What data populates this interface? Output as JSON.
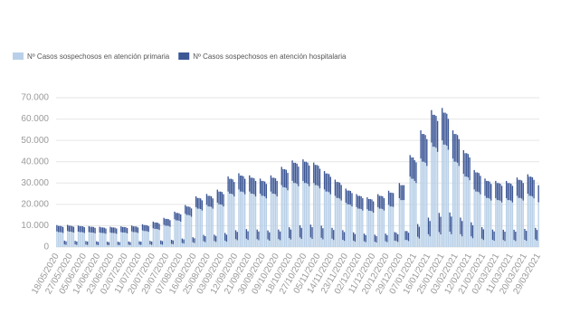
{
  "chart_data": {
    "type": "bar",
    "stacked": true,
    "grid": true,
    "categories": [
      "18/05/2020",
      null,
      null,
      null,
      null,
      null,
      null,
      null,
      null,
      "27/05/2020",
      null,
      null,
      null,
      null,
      null,
      null,
      null,
      null,
      "05/06/2020",
      null,
      null,
      null,
      null,
      null,
      null,
      null,
      null,
      "14/06/2020",
      null,
      null,
      null,
      null,
      null,
      null,
      null,
      null,
      "23/06/2020",
      null,
      null,
      null,
      null,
      null,
      null,
      null,
      null,
      "02/07/2020",
      null,
      null,
      null,
      null,
      null,
      null,
      null,
      null,
      "11/07/2020",
      null,
      null,
      null,
      null,
      null,
      null,
      null,
      null,
      "20/07/2020",
      null,
      null,
      null,
      null,
      null,
      null,
      null,
      null,
      "29/07/2020",
      null,
      null,
      null,
      null,
      null,
      null,
      null,
      null,
      "07/08/2020",
      null,
      null,
      null,
      null,
      null,
      null,
      null,
      null,
      "16/08/2020",
      null,
      null,
      null,
      null,
      null,
      null,
      null,
      null,
      "25/08/2020",
      null,
      null,
      null,
      null,
      null,
      null,
      null,
      null,
      "03/09/2020",
      null,
      null,
      null,
      null,
      null,
      null,
      null,
      null,
      "12/09/2020",
      null,
      null,
      null,
      null,
      null,
      null,
      null,
      null,
      "21/09/2020",
      null,
      null,
      null,
      null,
      null,
      null,
      null,
      null,
      "30/09/2020",
      null,
      null,
      null,
      null,
      null,
      null,
      null,
      null,
      "09/10/2020",
      null,
      null,
      null,
      null,
      null,
      null,
      null,
      null,
      "18/10/2020",
      null,
      null,
      null,
      null,
      null,
      null,
      null,
      null,
      "27/10/2020",
      null,
      null,
      null,
      null,
      null,
      null,
      null,
      null,
      "05/11/2020",
      null,
      null,
      null,
      null,
      null,
      null,
      null,
      null,
      "14/11/2020",
      null,
      null,
      null,
      null,
      null,
      null,
      null,
      null,
      "23/11/2020",
      null,
      null,
      null,
      null,
      null,
      null,
      null,
      null,
      "02/12/2020",
      null,
      null,
      null,
      null,
      null,
      null,
      null,
      null,
      "11/12/2020",
      null,
      null,
      null,
      null,
      null,
      null,
      null,
      null,
      "20/12/2020",
      null,
      null,
      null,
      null,
      null,
      null,
      null,
      null,
      "29/12/2020",
      null,
      null,
      null,
      null,
      null,
      null,
      null,
      null,
      "07/01/2021",
      null,
      null,
      null,
      null,
      null,
      null,
      null,
      null,
      "16/01/2021",
      null,
      null,
      null,
      null,
      null,
      null,
      null,
      null,
      "25/01/2021",
      null,
      null,
      null,
      null,
      null,
      null,
      null,
      null,
      "03/02/2021",
      null,
      null,
      null,
      null,
      null,
      null,
      null,
      null,
      "12/02/2021",
      null,
      null,
      null,
      null,
      null,
      null,
      null,
      null,
      "21/02/2021",
      null,
      null,
      null,
      null,
      null,
      null,
      null,
      null,
      "02/03/2021",
      null,
      null,
      null,
      null,
      null,
      null,
      null,
      null,
      "11/03/2021",
      null,
      null,
      null,
      null,
      null,
      null,
      null,
      null,
      "20/03/2021",
      null,
      null,
      null,
      null,
      null,
      null,
      null,
      null,
      "29/03/2021"
    ],
    "series": [
      {
        "name": "Nº Casos sospechosos en atención primaria",
        "color": "#b9d0e8",
        "values": [
          7300,
          7000,
          7000,
          6900,
          6600,
          1200,
          1000,
          7500,
          7200,
          7200,
          7000,
          6800,
          1200,
          1000,
          7200,
          7000,
          7000,
          6900,
          6600,
          1100,
          1000,
          7000,
          6800,
          6800,
          6700,
          6400,
          1100,
          900,
          6800,
          6600,
          6600,
          6500,
          6200,
          1000,
          900,
          6800,
          6600,
          6600,
          6500,
          6200,
          1000,
          900,
          7000,
          6800,
          6800,
          6700,
          6400,
          1100,
          900,
          7300,
          7000,
          7000,
          6900,
          6600,
          1100,
          1000,
          7800,
          7500,
          7500,
          7400,
          7100,
          1200,
          1000,
          8800,
          8500,
          8500,
          8400,
          8000,
          1300,
          1100,
          10400,
          10000,
          10000,
          9900,
          9500,
          1500,
          1300,
          13000,
          12500,
          12500,
          12300,
          11900,
          1900,
          1600,
          15600,
          15000,
          15000,
          14800,
          14200,
          2200,
          1900,
          18700,
          18000,
          18000,
          17800,
          17100,
          2700,
          2300,
          19800,
          19000,
          19000,
          18800,
          18000,
          2800,
          2400,
          20800,
          20000,
          20000,
          19800,
          19000,
          3000,
          2500,
          26000,
          25000,
          25000,
          24700,
          23700,
          3700,
          3200,
          27000,
          26000,
          26000,
          25700,
          24700,
          3900,
          3300,
          26000,
          25000,
          25000,
          24700,
          23700,
          3700,
          3200,
          25000,
          24000,
          24000,
          23700,
          22800,
          3600,
          3000,
          26000,
          25000,
          25000,
          24700,
          23700,
          3700,
          3200,
          29000,
          28000,
          28000,
          27700,
          26600,
          4200,
          3500,
          31000,
          30000,
          30000,
          29600,
          28500,
          4500,
          3800,
          31000,
          30000,
          30000,
          29600,
          28500,
          4500,
          3800,
          30000,
          29000,
          29000,
          28600,
          27500,
          4300,
          3600,
          27000,
          26000,
          26000,
          25700,
          24700,
          3900,
          3300,
          24000,
          23000,
          23000,
          22700,
          21800,
          3400,
          2900,
          20800,
          20000,
          20000,
          19800,
          19000,
          3000,
          2500,
          18700,
          18000,
          18000,
          17800,
          17100,
          2700,
          2300,
          17700,
          17000,
          17000,
          16800,
          16100,
          2500,
          2100,
          18700,
          18000,
          18000,
          17800,
          17100,
          2700,
          2300,
          19800,
          19000,
          19000,
          18800,
          3000,
          2800,
          2400,
          22900,
          22000,
          22000,
          22000,
          3300,
          3300,
          2800,
          33000,
          32000,
          32000,
          31000,
          30000,
          4800,
          4000,
          41500,
          40000,
          40000,
          39500,
          38000,
          6000,
          5000,
          49000,
          47000,
          47000,
          46500,
          44600,
          7000,
          5900,
          50000,
          48000,
          48000,
          47500,
          45600,
          7200,
          6000,
          41500,
          40000,
          40000,
          39500,
          38000,
          6000,
          5000,
          34300,
          33000,
          33000,
          32600,
          31300,
          5000,
          4100,
          27000,
          26000,
          26000,
          25700,
          24700,
          3900,
          3300,
          24000,
          23000,
          23000,
          22700,
          21800,
          3400,
          2900,
          22900,
          22000,
          22000,
          21700,
          20900,
          3300,
          2800,
          22900,
          22000,
          22000,
          21700,
          20900,
          3300,
          2800,
          24000,
          23000,
          23000,
          22700,
          21800,
          3400,
          2900,
          25000,
          24000,
          24000,
          23700,
          22800,
          3600,
          3000,
          21000
        ]
      },
      {
        "name": "Nº Casos sospechosos en atención hospitalaria",
        "color": "#3c5796",
        "values": [
          3000,
          2900,
          2900,
          2900,
          2800,
          1800,
          1700,
          2900,
          2800,
          2800,
          2800,
          2700,
          1700,
          1600,
          2900,
          2800,
          2800,
          2800,
          2700,
          1700,
          1600,
          2800,
          2700,
          2700,
          2700,
          2600,
          1600,
          1500,
          2700,
          2600,
          2600,
          2600,
          2500,
          1500,
          1400,
          2700,
          2600,
          2600,
          2600,
          2500,
          1500,
          1400,
          2700,
          2600,
          2600,
          2600,
          2500,
          1500,
          1400,
          2800,
          2700,
          2700,
          2700,
          2600,
          1600,
          1500,
          2900,
          2800,
          2800,
          2800,
          2700,
          1700,
          1600,
          3100,
          3000,
          3000,
          3000,
          2900,
          1800,
          1700,
          3300,
          3200,
          3200,
          3200,
          3100,
          1900,
          1800,
          3600,
          3500,
          3500,
          3500,
          3400,
          2100,
          2000,
          4100,
          4000,
          4000,
          4000,
          3900,
          2400,
          2200,
          5100,
          5000,
          5000,
          5000,
          4800,
          3000,
          2800,
          5100,
          5000,
          5000,
          5000,
          4800,
          3000,
          2800,
          6100,
          6000,
          6000,
          6000,
          5800,
          3600,
          3300,
          7100,
          7000,
          7000,
          7000,
          6800,
          4200,
          3900,
          7600,
          7500,
          7500,
          7500,
          7300,
          4500,
          4100,
          7600,
          7500,
          7500,
          7500,
          7300,
          4500,
          4100,
          7100,
          7000,
          7000,
          7000,
          6800,
          4200,
          3900,
          7600,
          7500,
          7500,
          7500,
          7300,
          4500,
          4100,
          8600,
          8500,
          8500,
          8500,
          8200,
          5100,
          4700,
          9600,
          9500,
          9500,
          9500,
          9200,
          5700,
          5200,
          10100,
          10000,
          10000,
          10000,
          9700,
          6000,
          5500,
          9600,
          9500,
          9500,
          9500,
          9200,
          5700,
          5200,
          8600,
          8500,
          8500,
          8500,
          8200,
          5100,
          4700,
          7600,
          7500,
          7500,
          7500,
          7300,
          4500,
          4100,
          6600,
          6500,
          6500,
          6500,
          6300,
          3900,
          3600,
          6100,
          6000,
          6000,
          6000,
          5800,
          3600,
          3300,
          5600,
          5500,
          5500,
          5500,
          5300,
          3300,
          3000,
          6100,
          6000,
          6000,
          6000,
          5800,
          3600,
          3300,
          6600,
          6500,
          6500,
          6500,
          4000,
          3900,
          3600,
          7100,
          7000,
          7000,
          7000,
          4200,
          4200,
          3900,
          10100,
          10000,
          10000,
          9700,
          9700,
          6000,
          5500,
          13200,
          13000,
          13000,
          13000,
          12600,
          7800,
          7200,
          15200,
          15000,
          15000,
          15000,
          14500,
          9000,
          8300,
          15200,
          15000,
          15000,
          15000,
          14500,
          9000,
          8300,
          13200,
          13000,
          13000,
          13000,
          12600,
          7800,
          7200,
          11100,
          11000,
          11000,
          11000,
          10700,
          6600,
          6100,
          9100,
          9000,
          9000,
          9000,
          8700,
          5400,
          5000,
          8100,
          8000,
          8000,
          8000,
          7800,
          4800,
          4400,
          8100,
          8000,
          8000,
          8000,
          7800,
          4800,
          4400,
          8100,
          8000,
          8000,
          8000,
          7800,
          4800,
          4400,
          8600,
          8500,
          8500,
          8500,
          8200,
          5100,
          4700,
          9100,
          9000,
          9000,
          9000,
          8700,
          5400,
          5000,
          8000
        ]
      }
    ],
    "ylim": [
      0,
      70000
    ],
    "yticks": [
      0,
      {
        "value": 10000,
        "label": "10.000"
      },
      {
        "value": 20000,
        "label": "20.000"
      },
      {
        "value": 30000,
        "label": "30.000"
      },
      {
        "value": 40000,
        "label": "40.000"
      },
      {
        "value": 50000,
        "label": "50.000"
      },
      {
        "value": 60000,
        "label": "60.000"
      },
      {
        "value": 70000,
        "label": "70.000"
      }
    ]
  }
}
